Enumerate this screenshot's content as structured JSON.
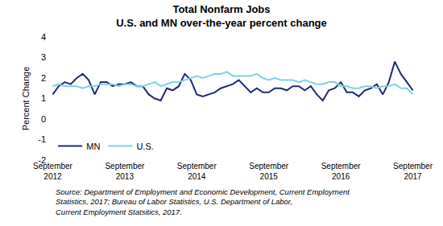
{
  "chart_data": {
    "type": "line",
    "title": "Total Nonfarm Jobs",
    "subtitle": "U.S. and MN over-the-year percent change",
    "y_label": "Percent Change",
    "source": "Source: Department of Employment and Economic Development, Current Employment Statistics, 2017; Bureau of Labor Statistics, U.S. Department of Labor, Current Employment Statsitics, 2017.",
    "categories": [
      "September 2012",
      null,
      null,
      null,
      null,
      null,
      null,
      null,
      null,
      null,
      null,
      null,
      "September 2013",
      null,
      null,
      null,
      null,
      null,
      null,
      null,
      null,
      null,
      null,
      null,
      "September 2014",
      null,
      null,
      null,
      null,
      null,
      null,
      null,
      null,
      null,
      null,
      null,
      "September 2015",
      null,
      null,
      null,
      null,
      null,
      null,
      null,
      null,
      null,
      null,
      null,
      "September 2016",
      null,
      null,
      null,
      null,
      null,
      null,
      null,
      null,
      null,
      null,
      null,
      "September 2017"
    ],
    "series": [
      {
        "name": "MN",
        "color": "#1f2a78",
        "values": [
          1.2,
          1.6,
          1.8,
          1.7,
          2.0,
          2.2,
          1.9,
          1.2,
          1.8,
          1.8,
          1.6,
          1.7,
          1.7,
          1.8,
          1.6,
          1.6,
          1.2,
          1.0,
          0.9,
          1.5,
          1.4,
          1.6,
          2.2,
          1.9,
          1.2,
          1.1,
          1.2,
          1.3,
          1.5,
          1.6,
          1.7,
          1.9,
          1.6,
          1.3,
          1.5,
          1.3,
          1.3,
          1.5,
          1.5,
          1.4,
          1.6,
          1.6,
          1.4,
          1.6,
          1.2,
          0.9,
          1.4,
          1.5,
          1.8,
          1.3,
          1.3,
          1.1,
          1.4,
          1.5,
          1.7,
          1.2,
          1.8,
          2.8,
          2.2,
          1.8,
          1.4
        ]
      },
      {
        "name": "U.S.",
        "color": "#7fd0e6",
        "values": [
          1.6,
          1.7,
          1.6,
          1.6,
          1.6,
          1.5,
          1.6,
          1.6,
          1.7,
          1.7,
          1.7,
          1.6,
          1.7,
          1.7,
          1.6,
          1.6,
          1.7,
          1.8,
          1.6,
          1.7,
          1.8,
          1.8,
          1.9,
          2.0,
          2.1,
          2.0,
          2.1,
          2.2,
          2.2,
          2.3,
          2.1,
          2.1,
          2.1,
          2.1,
          2.2,
          2.0,
          1.9,
          2.0,
          1.9,
          1.9,
          1.9,
          1.8,
          1.9,
          1.8,
          1.7,
          1.7,
          1.8,
          1.8,
          1.6,
          1.6,
          1.5,
          1.5,
          1.6,
          1.6,
          1.5,
          1.6,
          1.6,
          1.7,
          1.5,
          1.5,
          1.2
        ]
      }
    ],
    "ylim": [
      -2,
      4
    ],
    "yticks": [
      -2,
      -1,
      0,
      1,
      2,
      3,
      4
    ],
    "grid": false,
    "legend": "lower left"
  }
}
